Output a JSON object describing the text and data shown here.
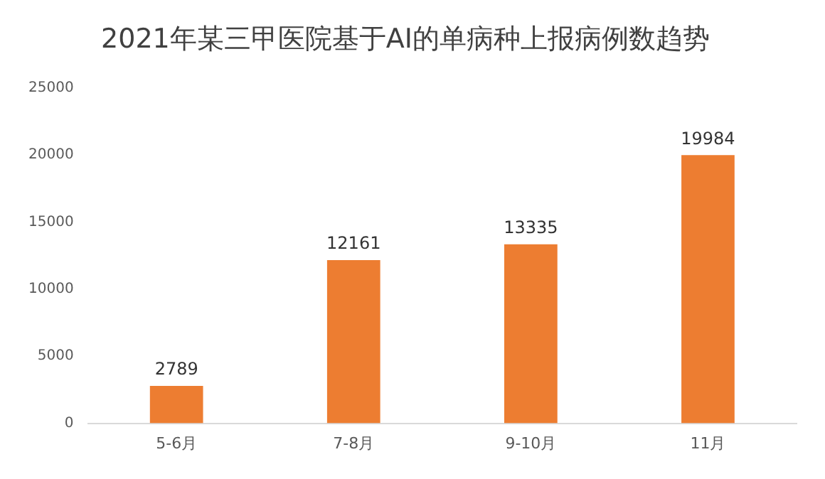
{
  "chart_data": {
    "type": "bar",
    "title": "2021年某三甲医院基于AI的单病种上报病例数趋势",
    "categories": [
      "5-6月",
      "7-8月",
      "9-10月",
      "11月"
    ],
    "values": [
      2789,
      12161,
      13335,
      19984
    ],
    "color": "#ed7d31",
    "ylim": [
      0,
      25000
    ],
    "yticks": [
      0,
      5000,
      10000,
      15000,
      20000,
      25000
    ],
    "grid": false,
    "data_labels": true
  }
}
